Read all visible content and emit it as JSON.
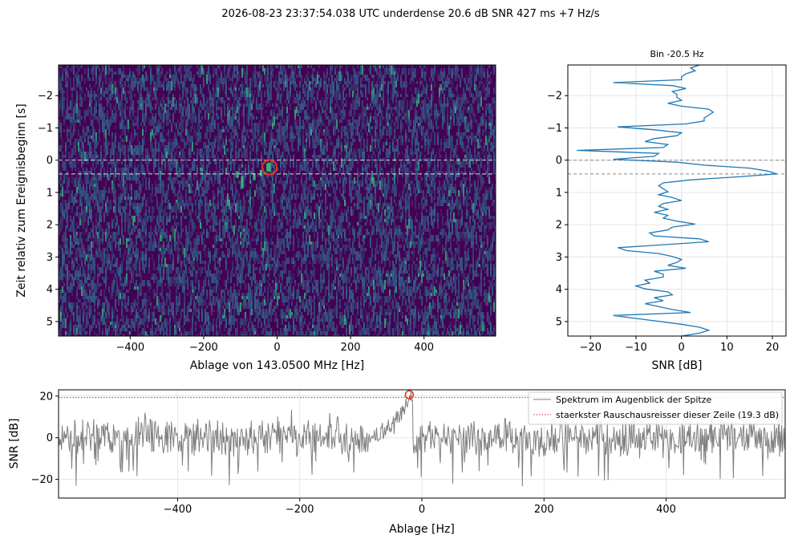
{
  "suptitle": "2026-08-23 23:37:54.038 UTC   underdense   20.6 dB SNR   427 ms   +7 Hz/s",
  "colors": {
    "waterfall_low": "#440154",
    "waterfall_mid": "#2f6c8e",
    "waterfall_high": "#35b779",
    "line": "#1f77b4",
    "spectrum": "#7f7f7f",
    "marker": "#e8361e",
    "noise_line": "#d62728",
    "dashed": "#888888"
  },
  "chart_data": [
    {
      "type": "heatmap",
      "name": "waterfall",
      "xlabel": "Ablage von 143.0500 MHz [Hz]",
      "ylabel": "Zeit relativ zum Ereignisbeginn [s]",
      "xlim": [
        -595,
        595
      ],
      "ylim": [
        5.45,
        -2.95
      ],
      "xticks": [
        -400,
        -200,
        0,
        200,
        400
      ],
      "xtick_labels": [
        "−400",
        "−200",
        "0",
        "200",
        "400"
      ],
      "yticks": [
        -2,
        -1,
        0,
        1,
        2,
        3,
        4,
        5
      ],
      "ytick_labels": [
        "−2",
        "−1",
        "0",
        "1",
        "2",
        "3",
        "4",
        "5"
      ],
      "event_lines": [
        0.0,
        0.427
      ],
      "peak": {
        "x": -20.5,
        "y": 0.22
      },
      "trail": [
        {
          "x": -20.5,
          "y0": 0.08,
          "y1": 0.36
        },
        {
          "x": -26,
          "y0": 0.1,
          "y1": 0.34
        },
        {
          "x": -44,
          "y0": 0.3,
          "y1": 0.5
        },
        {
          "x": -62,
          "y0": 0.4,
          "y1": 0.62
        },
        {
          "x": -95,
          "y0": 0.5,
          "y1": 0.88
        },
        {
          "x": -108,
          "y0": 0.35,
          "y1": 0.55
        }
      ]
    },
    {
      "type": "line",
      "name": "bin-profile",
      "title": "Bin -20.5 Hz",
      "xlabel": "SNR [dB]",
      "xlim": [
        -25,
        23
      ],
      "ylim": [
        5.45,
        -2.95
      ],
      "xticks": [
        -20,
        -10,
        0,
        10,
        20
      ],
      "xtick_labels": [
        "−20",
        "−10",
        "0",
        "10",
        "20"
      ],
      "yticks": [
        -2,
        -1,
        0,
        1,
        2,
        3,
        4,
        5
      ],
      "ytick_labels": [
        "−2",
        "−1",
        "0",
        "1",
        "2",
        "3",
        "4",
        "5"
      ],
      "grid": true,
      "event_lines": [
        0.0,
        0.427
      ],
      "snr": [
        4,
        2,
        3,
        1,
        0,
        0,
        -15,
        -2,
        1,
        -2,
        -1,
        -1,
        0,
        -3,
        0,
        6,
        7,
        6,
        5,
        5,
        1,
        -14,
        -6,
        0,
        -1,
        -6,
        -8,
        -3,
        -4,
        -23,
        -5,
        -6,
        -15,
        -1,
        5,
        15,
        19,
        21,
        12,
        2,
        -4,
        -5,
        -4,
        -3,
        -5,
        -2,
        0,
        -4,
        -5,
        -3,
        -6,
        -3,
        -4,
        -1,
        3,
        -2,
        -3,
        -7,
        -6,
        4,
        6,
        -4,
        -14,
        -12,
        -5,
        -2,
        0,
        -1,
        -3,
        1,
        -6,
        -4,
        -4,
        -8,
        -7,
        -10,
        -8,
        -3,
        -2,
        -6,
        -4,
        -8,
        -5,
        -2,
        2,
        -15,
        -10,
        -5,
        0,
        4,
        6,
        4,
        0
      ],
      "t_start": -2.95,
      "t_end": 5.45
    },
    {
      "type": "line",
      "name": "peak-spectrum",
      "xlabel": "Ablage [Hz]",
      "ylabel": "SNR [dB]",
      "xlim": [
        -595,
        595
      ],
      "ylim": [
        -29,
        23
      ],
      "xticks": [
        -400,
        -200,
        0,
        200,
        400
      ],
      "xtick_labels": [
        "−400",
        "−200",
        "0",
        "200",
        "400"
      ],
      "yticks": [
        -20,
        0,
        20
      ],
      "ytick_labels": [
        "−20",
        "0",
        "20"
      ],
      "grid": true,
      "noise_level": 19.3,
      "peak": {
        "x": -20.5,
        "y": 20.6
      },
      "series": [
        {
          "name": "Spektrum im Augenblick der Spitze"
        },
        {
          "name": "staerkster Rauschausreisser dieser Zeile (19.3 dB)"
        }
      ]
    }
  ]
}
